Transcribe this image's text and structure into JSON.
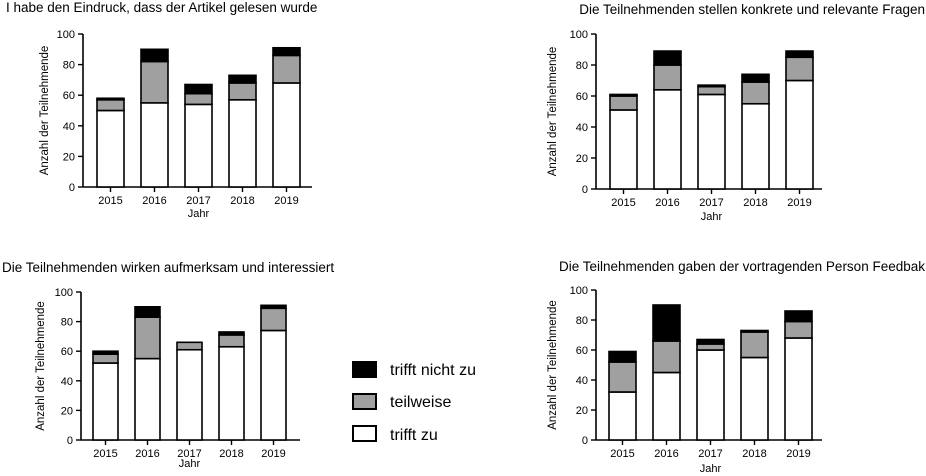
{
  "colors": {
    "trifft_nicht_zu": "#000000",
    "teilweise": "#a0a0a0",
    "trifft_zu": "#ffffff"
  },
  "legend": [
    {
      "key": "trifft_nicht_zu",
      "label": "trifft nicht zu"
    },
    {
      "key": "teilweise",
      "label": "teilweise"
    },
    {
      "key": "trifft_zu",
      "label": "trifft zu"
    }
  ],
  "chart_data": [
    {
      "type": "bar",
      "stacked": true,
      "title": "I habe den Eindruck, dass der Artikel gelesen wurde",
      "xlabel": "Jahr",
      "ylabel": "Anzahl der Teilnehmende",
      "ylim": [
        0,
        100
      ],
      "yticks": [
        0,
        20,
        40,
        60,
        80,
        100
      ],
      "categories": [
        "2015",
        "2016",
        "2017",
        "2018",
        "2019"
      ],
      "series": [
        {
          "name": "trifft zu",
          "values": [
            50,
            55,
            54,
            57,
            68
          ]
        },
        {
          "name": "teilweise",
          "values": [
            7,
            27,
            7,
            11,
            18
          ]
        },
        {
          "name": "trifft nicht zu",
          "values": [
            1,
            8,
            6,
            5,
            5
          ]
        }
      ]
    },
    {
      "type": "bar",
      "stacked": true,
      "title": "Die Teilnehmenden stellen konkrete und relevante Fragen",
      "xlabel": "Jahr",
      "ylabel": "Anzahl der Teilnehmende",
      "ylim": [
        0,
        100
      ],
      "yticks": [
        0,
        20,
        40,
        60,
        80,
        100
      ],
      "categories": [
        "2015",
        "2016",
        "2017",
        "2018",
        "2019"
      ],
      "series": [
        {
          "name": "trifft zu",
          "values": [
            51,
            64,
            61,
            55,
            70
          ]
        },
        {
          "name": "teilweise",
          "values": [
            9,
            16,
            5,
            14,
            15
          ]
        },
        {
          "name": "trifft nicht zu",
          "values": [
            1,
            9,
            1,
            5,
            4
          ]
        }
      ]
    },
    {
      "type": "bar",
      "stacked": true,
      "title": "Die Teilnehmenden wirken aufmerksam und interessiert",
      "xlabel": "Jahr",
      "ylabel": "Anzahl der Teilnehmende",
      "ylim": [
        0,
        100
      ],
      "yticks": [
        0,
        20,
        40,
        60,
        80,
        100
      ],
      "categories": [
        "2015",
        "2016",
        "2017",
        "2018",
        "2019"
      ],
      "series": [
        {
          "name": "trifft zu",
          "values": [
            52,
            55,
            61,
            63,
            74
          ]
        },
        {
          "name": "teilweise",
          "values": [
            6,
            28,
            5,
            8,
            15
          ]
        },
        {
          "name": "trifft nicht zu",
          "values": [
            2,
            7,
            0,
            2,
            2
          ]
        }
      ]
    },
    {
      "type": "bar",
      "stacked": true,
      "title": "Die Teilnehmenden gaben der vortragenden Person Feedbak",
      "xlabel": "Jahr",
      "ylabel": "Anzahl der Teilnehmende",
      "ylim": [
        0,
        100
      ],
      "yticks": [
        0,
        20,
        40,
        60,
        80,
        100
      ],
      "categories": [
        "2015",
        "2016",
        "2017",
        "2018",
        "2019"
      ],
      "series": [
        {
          "name": "trifft zu",
          "values": [
            32,
            45,
            60,
            55,
            68
          ]
        },
        {
          "name": "teilweise",
          "values": [
            20,
            21,
            4,
            17,
            11
          ]
        },
        {
          "name": "trifft nicht zu",
          "values": [
            7,
            24,
            3,
            1,
            7
          ]
        }
      ]
    }
  ]
}
